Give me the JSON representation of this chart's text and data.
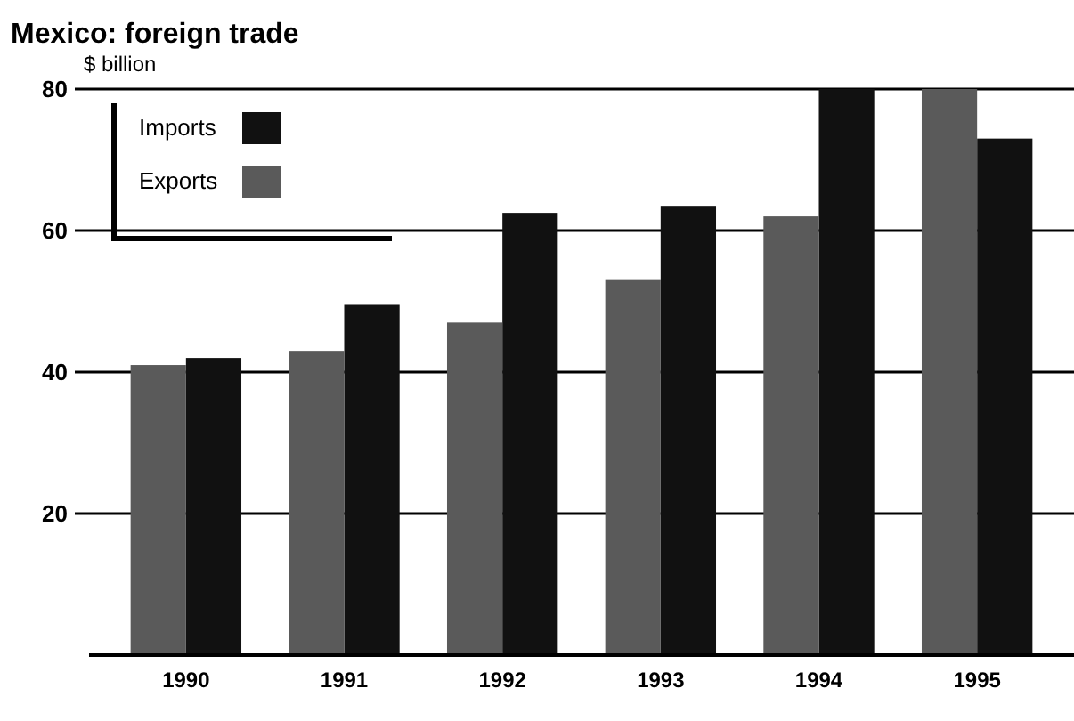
{
  "chart_data": {
    "type": "bar",
    "title": "Mexico: foreign trade",
    "ylabel": "$ billion",
    "categories": [
      "1990",
      "1991",
      "1992",
      "1993",
      "1994",
      "1995"
    ],
    "series": [
      {
        "name": "Imports",
        "color": "#111111",
        "values": [
          42,
          49.5,
          62.5,
          63.5,
          80,
          73
        ]
      },
      {
        "name": "Exports",
        "color": "#5a5a5a",
        "values": [
          41,
          43,
          47,
          53,
          62,
          80
        ]
      }
    ],
    "ylim": [
      0,
      80
    ],
    "yticks": [
      20,
      40,
      60,
      80
    ],
    "grid": "y",
    "legend": "top left"
  }
}
